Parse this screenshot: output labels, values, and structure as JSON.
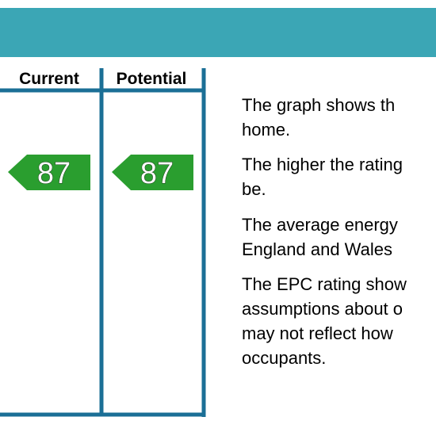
{
  "header": {
    "columns": [
      "Current",
      "Potential"
    ]
  },
  "ratings": {
    "current": 87,
    "potential": 87
  },
  "paragraphs": [
    [
      "The graph shows th",
      "home."
    ],
    [
      "The higher the rating",
      "be."
    ],
    [
      "The average energy",
      "England and Wales"
    ],
    [
      "The EPC rating show",
      "assumptions about o",
      "may not reflect how",
      "occupants."
    ]
  ]
}
